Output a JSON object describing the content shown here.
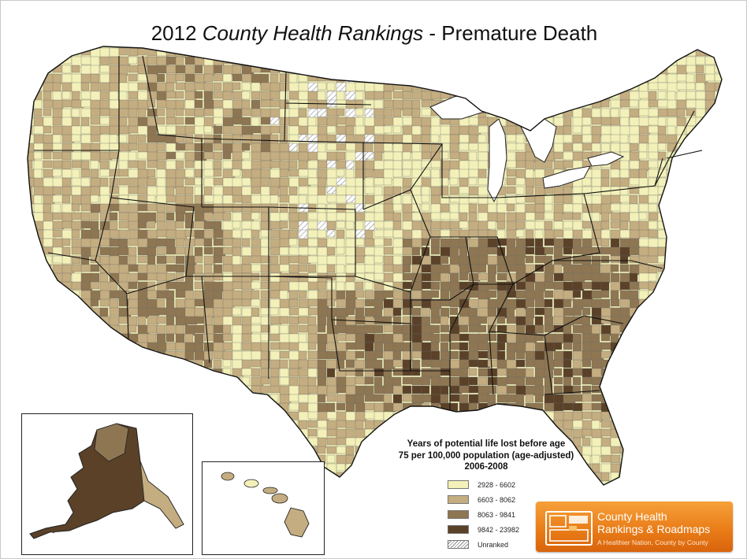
{
  "title": {
    "year": "2012",
    "italic": "County Health Rankings",
    "rest": "- Premature Death"
  },
  "legend": {
    "title_line1": "Years of potential life lost before age",
    "title_line2": "75 per 100,000 population (age-adjusted)",
    "title_line3": "2006-2008",
    "items": [
      {
        "label": "2928 - 6602",
        "color": "#f3f1b9"
      },
      {
        "label": "6603 - 8062",
        "color": "#c4ad80"
      },
      {
        "label": "8063 - 9841",
        "color": "#8e7652"
      },
      {
        "label": "9842 - 23982",
        "color": "#5a4128"
      },
      {
        "label": "Unranked",
        "color": "hatch"
      }
    ]
  },
  "logo": {
    "line1": "County Health",
    "line2": "Rankings & Roadmaps",
    "line3": "A Healthier Nation, County by County"
  },
  "colors": {
    "water": "#ffffff",
    "state_border": "#111111",
    "county_border": "#6b6b6b",
    "logo_orange": "#ea7d18"
  }
}
